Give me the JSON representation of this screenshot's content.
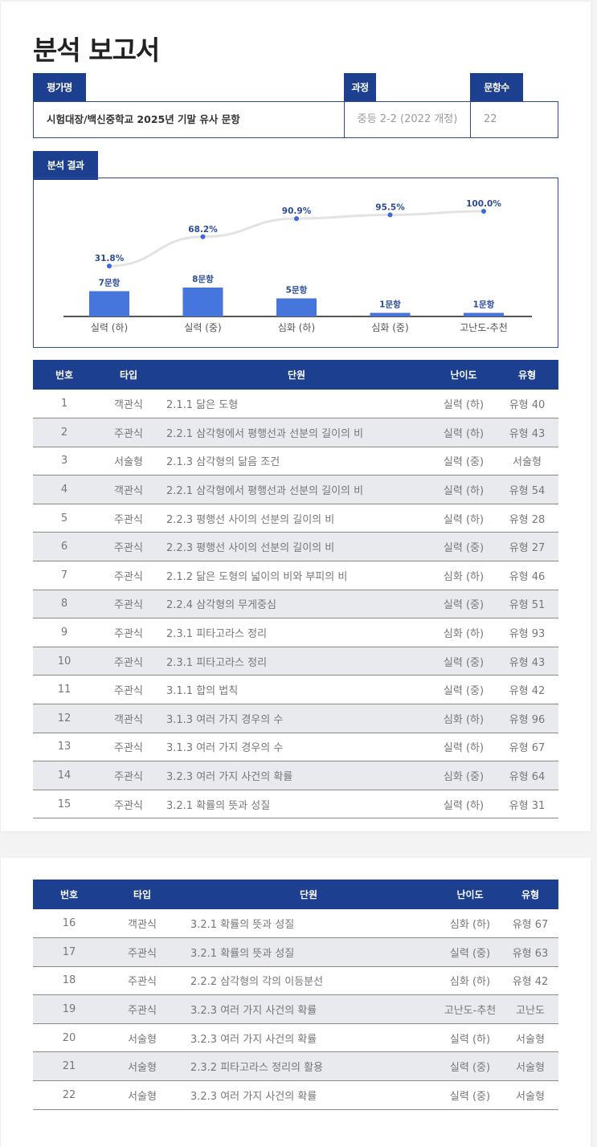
{
  "page_title": "분석 보고서",
  "info": {
    "name_label": "평가명",
    "name_value": "시험대장/백신중학교 2025년 기말 유사 문항",
    "course_label": "과정",
    "course_value": "중등 2-2 (2022 개정)",
    "count_label": "문항수",
    "count_value": "22"
  },
  "analysis_label": "분석 결과",
  "colors": {
    "primary": "#1c3f8f",
    "bar": "#4676dc",
    "line": "#e3e3e3",
    "point": "#3a6ad8"
  },
  "chart_data": {
    "type": "bar",
    "categories": [
      "실력 (하)",
      "실력 (중)",
      "심화 (하)",
      "심화 (중)",
      "고난도-추천"
    ],
    "series": [
      {
        "type": "bar",
        "values": [
          7,
          8,
          5,
          1,
          1
        ],
        "labels": [
          "7문항",
          "8문항",
          "5문항",
          "1문항",
          "1문항"
        ]
      },
      {
        "type": "line",
        "values": [
          31.8,
          68.2,
          90.9,
          95.5,
          100.0
        ],
        "labels": [
          "31.8%",
          "68.2%",
          "90.9%",
          "95.5%",
          "100.0%"
        ]
      }
    ]
  },
  "table_headers": [
    "번호",
    "타입",
    "단원",
    "난이도",
    "유형"
  ],
  "table1": [
    [
      "1",
      "객관식",
      "2.1.1 닮은 도형",
      "실력 (하)",
      "유형 40"
    ],
    [
      "2",
      "주관식",
      "2.2.1 삼각형에서 평행선과 선분의 길이의 비",
      "실력 (하)",
      "유형 43"
    ],
    [
      "3",
      "서술형",
      "2.1.3 삼각형의 닮음 조건",
      "실력 (중)",
      "서술형"
    ],
    [
      "4",
      "객관식",
      "2.2.1 삼각형에서 평행선과 선분의 길이의 비",
      "실력 (하)",
      "유형 54"
    ],
    [
      "5",
      "주관식",
      "2.2.3 평행선 사이의 선분의 길이의 비",
      "실력 (하)",
      "유형 28"
    ],
    [
      "6",
      "주관식",
      "2.2.3 평행선 사이의 선분의 길이의 비",
      "실력 (중)",
      "유형 27"
    ],
    [
      "7",
      "주관식",
      "2.1.2 닮은 도형의 넓이의 비와 부피의 비",
      "심화 (하)",
      "유형 46"
    ],
    [
      "8",
      "주관식",
      "2.2.4 삼각형의 무게중심",
      "실력 (중)",
      "유형 51"
    ],
    [
      "9",
      "주관식",
      "2.3.1 피타고라스 정리",
      "심화 (하)",
      "유형 93"
    ],
    [
      "10",
      "주관식",
      "2.3.1 피타고라스 정리",
      "실력 (중)",
      "유형 43"
    ],
    [
      "11",
      "주관식",
      "3.1.1 합의 법칙",
      "실력 (중)",
      "유형 42"
    ],
    [
      "12",
      "객관식",
      "3.1.3 여러 가지 경우의 수",
      "심화 (하)",
      "유형 96"
    ],
    [
      "13",
      "주관식",
      "3.1.3 여러 가지 경우의 수",
      "실력 (하)",
      "유형 67"
    ],
    [
      "14",
      "주관식",
      "3.2.3 여러 가지 사건의 확률",
      "심화 (중)",
      "유형 64"
    ],
    [
      "15",
      "주관식",
      "3.2.1 확률의 뜻과 성질",
      "실력 (하)",
      "유형 31"
    ]
  ],
  "table2": [
    [
      "16",
      "객관식",
      "3.2.1 확률의 뜻과 성질",
      "심화 (하)",
      "유형 67"
    ],
    [
      "17",
      "주관식",
      "3.2.1 확률의 뜻과 성질",
      "실력 (중)",
      "유형 63"
    ],
    [
      "18",
      "주관식",
      "2.2.2 삼각형의 각의 이등분선",
      "심화 (하)",
      "유형 42"
    ],
    [
      "19",
      "주관식",
      "3.2.3 여러 가지 사건의 확률",
      "고난도-추천",
      "고난도"
    ],
    [
      "20",
      "서술형",
      "3.2.3 여러 가지 사건의 확률",
      "실력 (하)",
      "서술형"
    ],
    [
      "21",
      "서술형",
      "2.3.2 피타고라스 정리의 활용",
      "실력 (중)",
      "서술형"
    ],
    [
      "22",
      "서술형",
      "3.2.3 여러 가지 사건의 확률",
      "실력 (중)",
      "서술형"
    ]
  ]
}
